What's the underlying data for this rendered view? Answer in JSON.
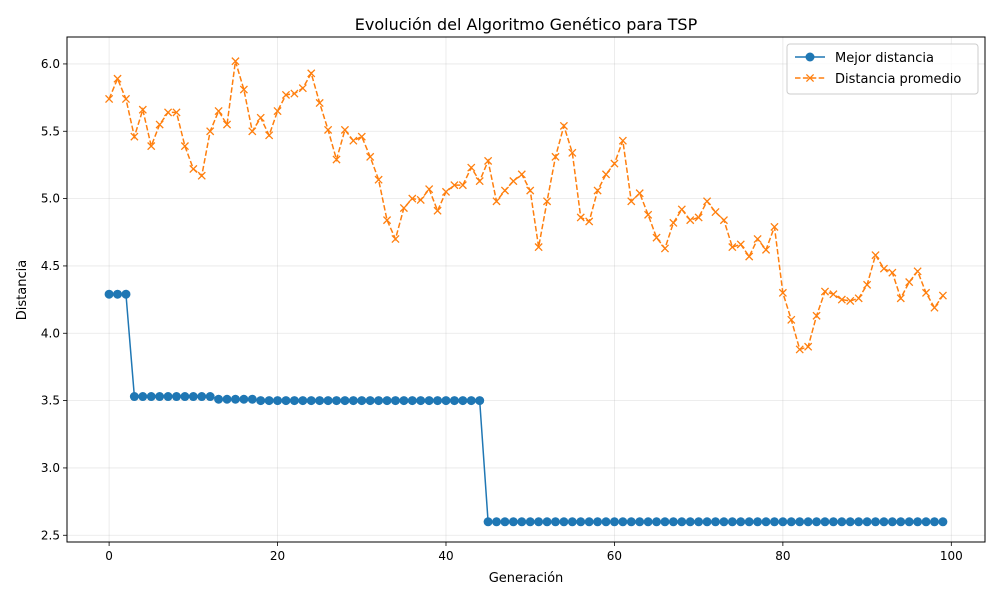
{
  "chart_data": {
    "type": "line",
    "title": "Evolución del Algoritmo Genético para TSP",
    "xlabel": "Generación",
    "ylabel": "Distancia",
    "xlim": [
      -5,
      104
    ],
    "ylim": [
      2.45,
      6.2
    ],
    "xticks": [
      0,
      20,
      40,
      60,
      80,
      100
    ],
    "yticks": [
      2.5,
      3.0,
      3.5,
      4.0,
      4.5,
      5.0,
      5.5,
      6.0
    ],
    "grid": true,
    "legend_position": "top-right",
    "series": [
      {
        "name": "Mejor distancia",
        "color": "#1f77b4",
        "marker": "circle",
        "linestyle": "solid",
        "x": [
          0,
          1,
          2,
          3,
          4,
          5,
          6,
          7,
          8,
          9,
          10,
          11,
          12,
          13,
          14,
          15,
          16,
          17,
          18,
          19,
          20,
          21,
          22,
          23,
          24,
          25,
          26,
          27,
          28,
          29,
          30,
          31,
          32,
          33,
          34,
          35,
          36,
          37,
          38,
          39,
          40,
          41,
          42,
          43,
          44,
          45,
          46,
          47,
          48,
          49,
          50,
          51,
          52,
          53,
          54,
          55,
          56,
          57,
          58,
          59,
          60,
          61,
          62,
          63,
          64,
          65,
          66,
          67,
          68,
          69,
          70,
          71,
          72,
          73,
          74,
          75,
          76,
          77,
          78,
          79,
          80,
          81,
          82,
          83,
          84,
          85,
          86,
          87,
          88,
          89,
          90,
          91,
          92,
          93,
          94,
          95,
          96,
          97,
          98,
          99
        ],
        "values": [
          4.29,
          4.29,
          4.29,
          3.53,
          3.53,
          3.53,
          3.53,
          3.53,
          3.53,
          3.53,
          3.53,
          3.53,
          3.53,
          3.51,
          3.51,
          3.51,
          3.51,
          3.51,
          3.5,
          3.5,
          3.5,
          3.5,
          3.5,
          3.5,
          3.5,
          3.5,
          3.5,
          3.5,
          3.5,
          3.5,
          3.5,
          3.5,
          3.5,
          3.5,
          3.5,
          3.5,
          3.5,
          3.5,
          3.5,
          3.5,
          3.5,
          3.5,
          3.5,
          3.5,
          3.5,
          2.6,
          2.6,
          2.6,
          2.6,
          2.6,
          2.6,
          2.6,
          2.6,
          2.6,
          2.6,
          2.6,
          2.6,
          2.6,
          2.6,
          2.6,
          2.6,
          2.6,
          2.6,
          2.6,
          2.6,
          2.6,
          2.6,
          2.6,
          2.6,
          2.6,
          2.6,
          2.6,
          2.6,
          2.6,
          2.6,
          2.6,
          2.6,
          2.6,
          2.6,
          2.6,
          2.6,
          2.6,
          2.6,
          2.6,
          2.6,
          2.6,
          2.6,
          2.6,
          2.6,
          2.6,
          2.6,
          2.6,
          2.6,
          2.6,
          2.6,
          2.6,
          2.6,
          2.6,
          2.6,
          2.6
        ]
      },
      {
        "name": "Distancia promedio",
        "color": "#ff7f0e",
        "marker": "x",
        "linestyle": "dashed",
        "x": [
          0,
          1,
          2,
          3,
          4,
          5,
          6,
          7,
          8,
          9,
          10,
          11,
          12,
          13,
          14,
          15,
          16,
          17,
          18,
          19,
          20,
          21,
          22,
          23,
          24,
          25,
          26,
          27,
          28,
          29,
          30,
          31,
          32,
          33,
          34,
          35,
          36,
          37,
          38,
          39,
          40,
          41,
          42,
          43,
          44,
          45,
          46,
          47,
          48,
          49,
          50,
          51,
          52,
          53,
          54,
          55,
          56,
          57,
          58,
          59,
          60,
          61,
          62,
          63,
          64,
          65,
          66,
          67,
          68,
          69,
          70,
          71,
          72,
          73,
          74,
          75,
          76,
          77,
          78,
          79,
          80,
          81,
          82,
          83,
          84,
          85,
          86,
          87,
          88,
          89,
          90,
          91,
          92,
          93,
          94,
          95,
          96,
          97,
          98,
          99
        ],
        "values": [
          5.74,
          5.89,
          5.74,
          5.46,
          5.66,
          5.39,
          5.55,
          5.64,
          5.64,
          5.39,
          5.22,
          5.17,
          5.5,
          5.65,
          5.55,
          6.02,
          5.81,
          5.5,
          5.6,
          5.47,
          5.65,
          5.77,
          5.78,
          5.82,
          5.93,
          5.71,
          5.51,
          5.29,
          5.51,
          5.43,
          5.46,
          5.31,
          5.14,
          4.84,
          4.7,
          4.93,
          5.0,
          4.99,
          5.07,
          4.91,
          5.05,
          5.1,
          5.1,
          5.23,
          5.13,
          5.28,
          4.98,
          5.06,
          5.13,
          5.18,
          5.06,
          4.64,
          4.98,
          5.31,
          5.54,
          5.34,
          4.86,
          4.83,
          5.06,
          5.18,
          5.26,
          5.43,
          4.98,
          5.04,
          4.88,
          4.71,
          4.63,
          4.82,
          4.92,
          4.84,
          4.86,
          4.98,
          4.9,
          4.84,
          4.64,
          4.66,
          4.57,
          4.7,
          4.62,
          4.79,
          4.3,
          4.1,
          3.88,
          3.9,
          4.13,
          4.31,
          4.29,
          4.25,
          4.24,
          4.26,
          4.36,
          4.58,
          4.48,
          4.45,
          4.26,
          4.38,
          4.46,
          4.3,
          4.19,
          4.28
        ]
      }
    ]
  }
}
